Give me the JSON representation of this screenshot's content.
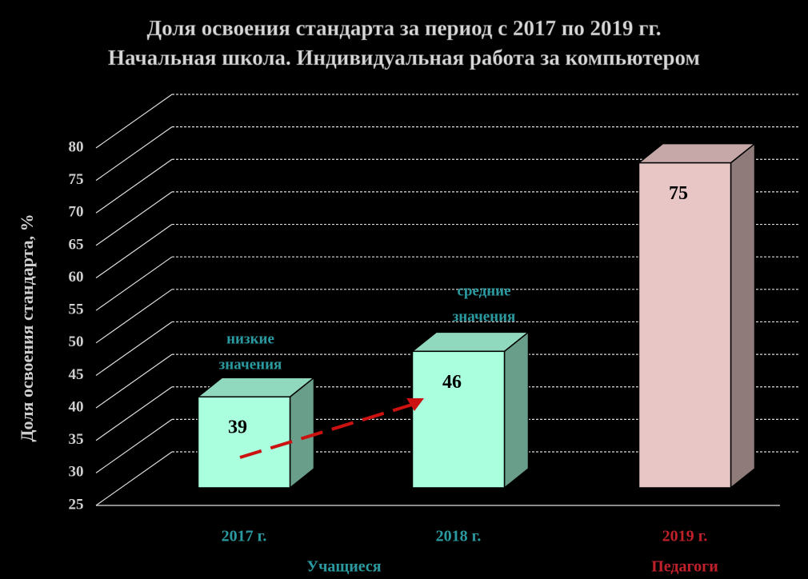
{
  "chart_data": {
    "type": "bar3d",
    "title": [
      "Доля освоения стандарта за период с 2017 по  2019 гг.",
      "Начальная школа. Индивидуальная  работа  за  компьютером"
    ],
    "y_label": "Доля освоения стандарта, %",
    "categories": [
      "2017 г.",
      "2018 г.",
      "2019 г."
    ],
    "category_colors": [
      "#2a9aa0",
      "#2a9aa0",
      "#c0202a"
    ],
    "values": [
      39,
      46,
      75
    ],
    "colors": [
      "#aaffdf",
      "#aaffdf",
      "#e9c6c6"
    ],
    "groups": [
      {
        "name": "Учащиеся",
        "color": "#2a9aa0"
      },
      {
        "name": "Педагоги",
        "color": "#c0202a"
      }
    ],
    "annotations": [
      [
        "низкие",
        "значения"
      ],
      [
        "средние",
        "значения"
      ]
    ],
    "ylim": [
      25,
      80
    ],
    "yticks": [
      25,
      30,
      35,
      40,
      45,
      50,
      55,
      60,
      65,
      70,
      75,
      80
    ],
    "grid": true
  }
}
